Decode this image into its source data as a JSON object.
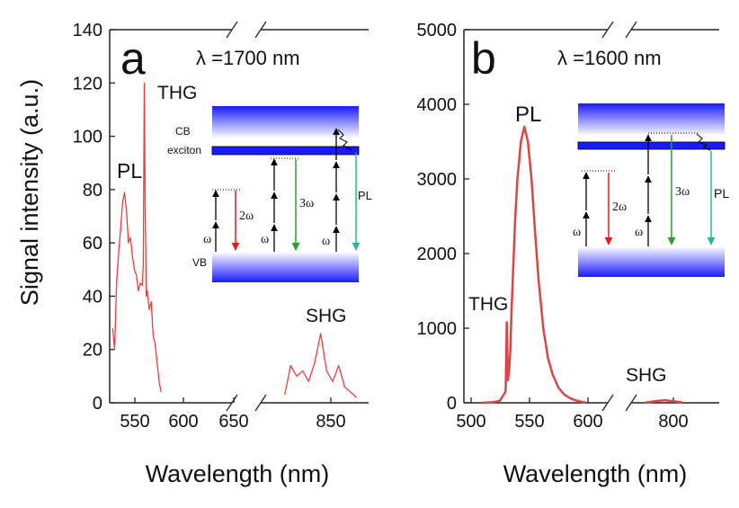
{
  "figure": {
    "ylabel": "Signal intensity (a.u.)"
  },
  "chart_data": [
    {
      "type": "line",
      "panel_label": "a",
      "annotation": "λ =1700 nm",
      "xlabel": "Wavelength (nm)",
      "ylabel": "Signal intensity (a.u.)",
      "ylim": [
        0,
        140
      ],
      "yticks": [
        "0",
        "20",
        "40",
        "60",
        "80",
        "100",
        "120",
        "140"
      ],
      "xticks": [
        "550",
        "600",
        "650",
        "850"
      ],
      "x_broken_axis": true,
      "series_color": "#ef3b3b",
      "peak_labels": [
        "PL",
        "THG",
        "SHG"
      ],
      "series": [
        {
          "name": "PL + THG",
          "x": [
            533,
            535,
            537,
            539,
            541,
            543,
            545,
            547,
            549,
            551,
            553,
            555,
            557,
            559,
            561,
            563,
            564,
            565,
            566,
            567,
            568,
            570,
            572,
            574,
            576,
            578,
            580,
            582
          ],
          "y": [
            28,
            20,
            45,
            56,
            65,
            75,
            79,
            72,
            60,
            62,
            55,
            50,
            48,
            42,
            45,
            44,
            52,
            120,
            70,
            40,
            42,
            35,
            38,
            25,
            22,
            15,
            8,
            4
          ]
        },
        {
          "name": "SHG",
          "x": [
            820,
            825,
            830,
            835,
            840,
            845,
            850,
            855,
            860,
            865,
            870,
            875,
            880
          ],
          "y": [
            3,
            14,
            10,
            12,
            8,
            15,
            26,
            12,
            8,
            14,
            6,
            4,
            2
          ]
        }
      ],
      "inset": {
        "levels": [
          "CB",
          "exciton",
          "VB"
        ],
        "labels": [
          "ω",
          "2ω",
          "ω",
          "3ω",
          "ω",
          "PL"
        ]
      }
    },
    {
      "type": "line",
      "panel_label": "b",
      "annotation": "λ =1600 nm",
      "xlabel": "Wavelength (nm)",
      "ylabel": "",
      "ylim": [
        0,
        5000
      ],
      "yticks": [
        "0",
        "1000",
        "2000",
        "3000",
        "4000",
        "5000"
      ],
      "xticks": [
        "500",
        "550",
        "600",
        "800"
      ],
      "x_broken_axis": true,
      "series_color": "#d94646",
      "peak_labels": [
        "PL",
        "THG",
        "SHG"
      ],
      "series": [
        {
          "name": "PL + THG",
          "x": [
            510,
            515,
            520,
            525,
            530,
            531,
            532,
            533,
            534,
            535,
            538,
            540,
            543,
            546,
            549,
            552,
            555,
            558,
            562,
            566,
            570,
            575,
            580,
            585,
            590,
            595,
            598
          ],
          "y": [
            0,
            5,
            10,
            25,
            150,
            1080,
            300,
            420,
            700,
            1200,
            2400,
            3000,
            3500,
            3700,
            3500,
            3000,
            2300,
            1650,
            1000,
            600,
            380,
            200,
            110,
            60,
            30,
            12,
            5
          ]
        },
        {
          "name": "SHG",
          "x": [
            780,
            790,
            800,
            810,
            820
          ],
          "y": [
            5,
            20,
            35,
            20,
            5
          ]
        }
      ],
      "inset": {
        "levels": [],
        "labels": [
          "ω",
          "2ω",
          "ω",
          "3ω",
          "PL"
        ]
      }
    }
  ]
}
